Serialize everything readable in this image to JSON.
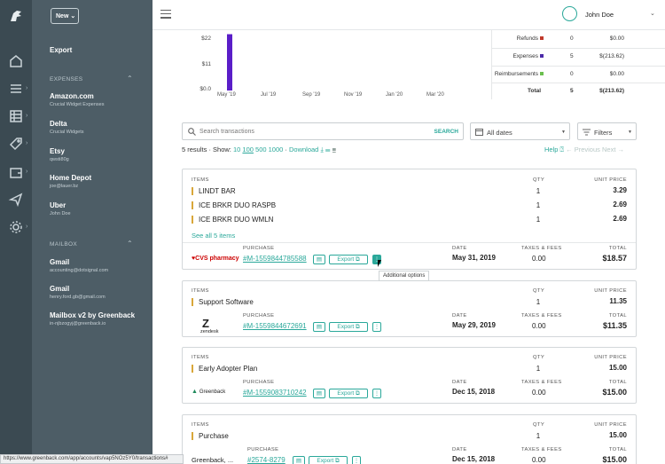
{
  "sidebar": {
    "new_button": "New",
    "export": "Export",
    "expenses_section": "EXPENSES",
    "expenses": [
      {
        "name": "Amazon.com",
        "sub": "Crucial Widget Expenses"
      },
      {
        "name": "Delta",
        "sub": "Crucial Widgets"
      },
      {
        "name": "Etsy",
        "sub": "qwsti80g"
      },
      {
        "name": "Home Depot",
        "sub": "joe@lauer.bz"
      },
      {
        "name": "Uber",
        "sub": "John Doe"
      }
    ],
    "mailbox_section": "MAILBOX",
    "mailboxes": [
      {
        "name": "Gmail",
        "sub": "accounting@dotsignal.com"
      },
      {
        "name": "Gmail",
        "sub": "henry.ford.gb@gmail.com"
      },
      {
        "name": "Mailbox v2 by Greenback",
        "sub": "in-njbzogyj@greenback.io"
      }
    ]
  },
  "header": {
    "user_name": "John Doe"
  },
  "chart_data": {
    "type": "bar",
    "y_ticks": [
      "$22",
      "$11",
      "$0.0"
    ],
    "x_ticks": [
      "May '19",
      "Jul '19",
      "Sep '19",
      "Nov '19",
      "Jan '20",
      "Mar '20"
    ],
    "ylim": [
      0,
      30
    ],
    "bars": [
      {
        "x": "May '19",
        "value": 28
      }
    ],
    "bar_color": "#5a1ec8"
  },
  "summary": {
    "rows": [
      {
        "label": "Refunds",
        "count": "0",
        "amount": "$0.00",
        "color": "#c0392b"
      },
      {
        "label": "Expenses",
        "count": "5",
        "amount": "$(213.62)",
        "color": "#4b2aa8"
      },
      {
        "label": "Reimbursements",
        "count": "0",
        "amount": "$0.00",
        "color": "#6bbf4e"
      }
    ],
    "total_label": "Total",
    "total_count": "5",
    "total_amount": "$(213.62)"
  },
  "toolbar": {
    "search_placeholder": "Search transactions",
    "search_button": "SEARCH",
    "dates": "All dates",
    "filters": "Filters",
    "results": "5 results",
    "show_label": "Show:",
    "show_options": [
      "10",
      "100",
      "500",
      "1000"
    ],
    "download": "Download",
    "help": "Help",
    "previous": "← Previous",
    "next": "Next →"
  },
  "labels": {
    "items": "ITEMS",
    "qty": "QTY",
    "unit_price": "UNIT PRICE",
    "purchase": "PURCHASE",
    "date": "DATE",
    "taxes": "TAXES & FEES",
    "total": "TOTAL",
    "export": "Export",
    "tooltip": "Additional options"
  },
  "transactions": [
    {
      "items": [
        {
          "name": "LINDT BAR",
          "qty": "1",
          "price": "3.29"
        },
        {
          "name": "ICE BRKR DUO RASPB",
          "qty": "1",
          "price": "2.69"
        },
        {
          "name": "ICE BRKR DUO WMLN",
          "qty": "1",
          "price": "2.69"
        }
      ],
      "see_all": "See all 5 items",
      "merchant": "CVS pharmacy",
      "purchase_id": "#M-1559844785588",
      "date": "May 31, 2019",
      "taxes": "0.00",
      "total": "$18.57"
    },
    {
      "items": [
        {
          "name": "Support Software",
          "qty": "1",
          "price": "11.35"
        }
      ],
      "merchant": "zendesk",
      "purchase_id": "#M-1559844672691",
      "date": "May 29, 2019",
      "taxes": "0.00",
      "total": "$11.35"
    },
    {
      "items": [
        {
          "name": "Early Adopter Plan",
          "qty": "1",
          "price": "15.00"
        }
      ],
      "merchant": "Greenback",
      "purchase_id": "#M-1559083710242",
      "date": "Dec 15, 2018",
      "taxes": "0.00",
      "total": "$15.00"
    },
    {
      "items": [
        {
          "name": "Purchase",
          "qty": "1",
          "price": "15.00"
        }
      ],
      "merchant": "Greenback, ...",
      "purchase_id": "#2574-8279",
      "date": "Dec 15, 2018",
      "taxes": "0.00",
      "total": "$15.00"
    }
  ],
  "status_url": "https://www.greenback.com/app/accounts/vap5NOz5Y0/transactions#"
}
